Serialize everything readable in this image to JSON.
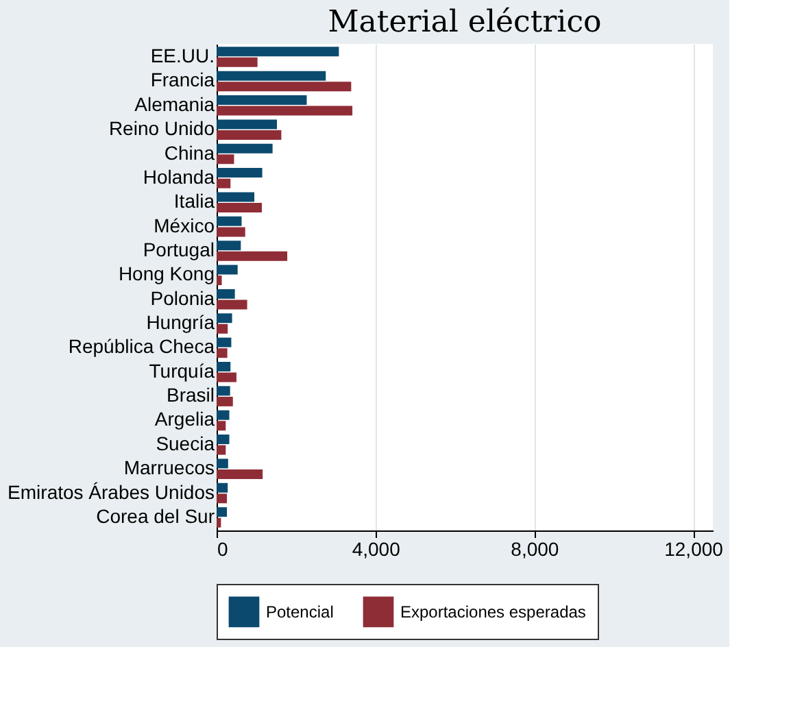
{
  "chart_data": {
    "type": "bar",
    "orientation": "horizontal",
    "title": "Material eléctrico",
    "categories": [
      "EE.UU.",
      "Francia",
      "Alemania",
      "Reino Unido",
      "China",
      "Holanda",
      "Italia",
      "México",
      "Portugal",
      "Hong Kong",
      "Polonia",
      "Hungría",
      "República Checa",
      "Turquía",
      "Brasil",
      "Argelia",
      "Suecia",
      "Marruecos",
      "Emiratos Árabes Unidos",
      "Corea del Sur"
    ],
    "series": [
      {
        "name": "Potencial",
        "color": "#0b4a6e",
        "values": [
          3080,
          2750,
          2270,
          1520,
          1410,
          1150,
          950,
          630,
          610,
          530,
          460,
          390,
          370,
          350,
          340,
          320,
          320,
          290,
          280,
          260
        ]
      },
      {
        "name": "Exportaciones esperadas",
        "color": "#8f2d36",
        "values": [
          1030,
          3390,
          3420,
          1630,
          440,
          350,
          1140,
          720,
          1780,
          130,
          770,
          280,
          270,
          500,
          410,
          230,
          230,
          1160,
          260,
          110
        ]
      }
    ],
    "xlim": [
      0,
      12500
    ],
    "xticks": [
      {
        "value": 0,
        "label": "0"
      },
      {
        "value": 4000,
        "label": "4,000"
      },
      {
        "value": 8000,
        "label": "8,000"
      },
      {
        "value": 12000,
        "label": "12,000"
      }
    ],
    "grid": "x",
    "legend": "bottom"
  }
}
